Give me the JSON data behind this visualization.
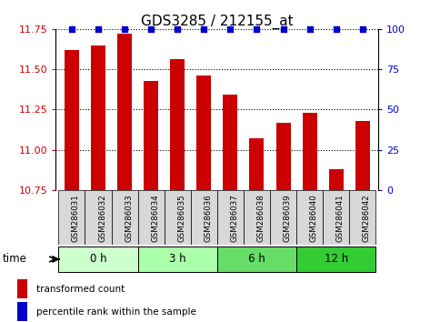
{
  "title": "GDS3285 / 212155_at",
  "samples": [
    "GSM286031",
    "GSM286032",
    "GSM286033",
    "GSM286034",
    "GSM286035",
    "GSM286036",
    "GSM286037",
    "GSM286038",
    "GSM286039",
    "GSM286040",
    "GSM286041",
    "GSM286042"
  ],
  "bar_values": [
    11.62,
    11.65,
    11.72,
    11.43,
    11.56,
    11.46,
    11.34,
    11.07,
    11.17,
    11.23,
    10.88,
    11.18
  ],
  "percentile_values": [
    100,
    100,
    100,
    100,
    100,
    100,
    100,
    100,
    100,
    100,
    100,
    100
  ],
  "bar_color": "#cc0000",
  "percentile_color": "#0000cc",
  "ylim_left": [
    10.75,
    11.75
  ],
  "ylim_right": [
    0,
    100
  ],
  "yticks_left": [
    10.75,
    11.0,
    11.25,
    11.5,
    11.75
  ],
  "yticks_right": [
    0,
    25,
    50,
    75,
    100
  ],
  "group_labels": [
    "0 h",
    "3 h",
    "6 h",
    "12 h"
  ],
  "group_ranges": [
    [
      0,
      3
    ],
    [
      3,
      6
    ],
    [
      6,
      9
    ],
    [
      9,
      12
    ]
  ],
  "group_colors_list": [
    "#ccffcc",
    "#aaffaa",
    "#66dd66",
    "#33cc33"
  ],
  "time_label": "time",
  "legend_bar_label": "transformed count",
  "legend_pct_label": "percentile rank within the sample",
  "bar_color_legend": "#cc0000",
  "percentile_color_legend": "#0000cc",
  "title_fontsize": 11,
  "tick_fontsize": 8,
  "label_fontsize": 8,
  "bar_width": 0.55
}
